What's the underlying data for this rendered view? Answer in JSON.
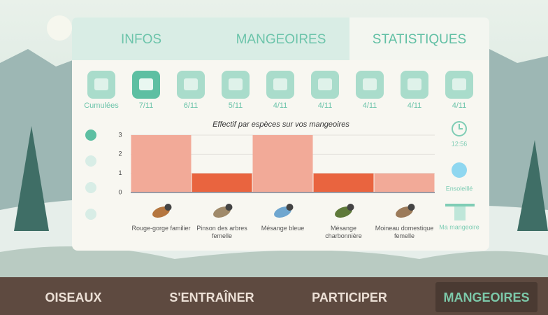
{
  "tabs": [
    "INFOS",
    "MANGEOIRES",
    "STATISTIQUES"
  ],
  "days": [
    "Cumulées",
    "7/11",
    "6/11",
    "5/11",
    "4/11",
    "4/11",
    "4/11",
    "4/11",
    "4/11"
  ],
  "chart": {
    "type": "bar",
    "title": "Effectif par espèces sur vos mangeoires",
    "categories": [
      "Rouge-gorge familier",
      "Pinson des arbres femelle",
      "Mésange bleue",
      "Mésange charbonnière",
      "Moineau domestique femelle"
    ],
    "values": [
      3,
      1,
      3,
      1,
      1
    ],
    "colors": [
      "#f2aa98",
      "#e9643f",
      "#f2aa98",
      "#e9643f",
      "#f2aa98"
    ],
    "ylim": [
      0,
      3
    ],
    "yticks": [
      0,
      1,
      2,
      3
    ],
    "grid": true
  },
  "side": {
    "time": "12:56",
    "weather": "Ensoleillé",
    "feeder": "Ma mangeoire"
  },
  "nav": [
    "OISEAUX",
    "S'ENTRAÎNER",
    "PARTICIPER",
    "MANGEOIRES"
  ]
}
